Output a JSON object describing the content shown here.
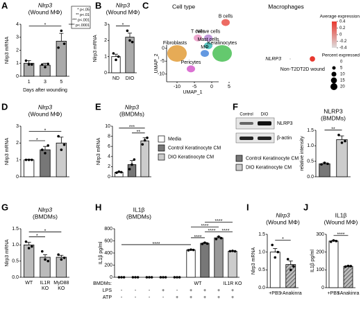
{
  "chart_data": [
    {
      "type": "bar",
      "panel": "A",
      "title": "Nlrp3",
      "italic_title": true,
      "subtitle": "(Wound MΦ)",
      "ylabel": "Nlrp3 mRNA",
      "xlabel": "Days after wounding",
      "categories": [
        "1",
        "3",
        "5"
      ],
      "values": [
        1.0,
        0.85,
        2.7
      ],
      "errors": [
        0.2,
        0.15,
        0.6
      ],
      "points": [
        [
          1.2,
          0.9,
          0.9
        ],
        [
          0.9,
          0.7,
          0.95
        ],
        [
          2.2,
          3.5,
          2.5
        ]
      ],
      "colors": [
        "#aaaaaa",
        "#aaaaaa",
        "#aaaaaa"
      ],
      "ylim": [
        0,
        4
      ],
      "yticks": [
        0,
        1,
        2,
        3,
        4
      ],
      "sig": [
        {
          "label": "*",
          "between": [
            0,
            2
          ]
        }
      ],
      "pvalue_key": [
        "* p<.05",
        "** p<.01",
        "*** p<.001",
        "**** p<.0001"
      ]
    },
    {
      "type": "bar",
      "panel": "B",
      "title": "Nlrp3",
      "italic_title": true,
      "subtitle": "(Wound MΦ)",
      "ylabel": "Nlrp3 mRNA",
      "categories": [
        "ND",
        "DIO"
      ],
      "values": [
        1.0,
        2.2
      ],
      "errors": [
        0.15,
        0.25
      ],
      "points": [
        [
          1.2,
          0.8,
          1.0
        ],
        [
          2.6,
          2.0,
          1.9
        ]
      ],
      "colors": [
        "#ffffff",
        "#aaaaaa"
      ],
      "ylim": [
        0,
        3
      ],
      "yticks": [
        0,
        1,
        2,
        3
      ],
      "sig": [
        {
          "label": "*",
          "between": [
            0,
            1
          ]
        }
      ]
    },
    {
      "type": "umap",
      "panel": "C",
      "title": "Cell type",
      "xlabel": "UMAP_1",
      "ylabel": "UMAP_2",
      "xlim": [
        -13,
        8
      ],
      "ylim": [
        -13,
        12
      ],
      "xticks": [
        -10,
        -5,
        0,
        5
      ],
      "yticks": [
        -10,
        -5,
        0,
        5,
        10
      ],
      "clusters": [
        {
          "name": "B cells",
          "color": "#e8463c",
          "x": 4,
          "y": 10
        },
        {
          "name": "T cells",
          "color": "#e98fc0",
          "x": -4,
          "y": 4
        },
        {
          "name": "Nerve cells",
          "color": "#b07fd0",
          "x": -1,
          "y": 4
        },
        {
          "name": "Mast cells",
          "color": "#2fb6b0",
          "x": -1,
          "y": 1
        },
        {
          "name": "MΦ",
          "color": "#3d7fd9",
          "x": -2,
          "y": -2
        },
        {
          "name": "Fibroblasts",
          "color": "#e0962c",
          "x": -10,
          "y": -2
        },
        {
          "name": "Keratinocytes",
          "color": "#3dbb4a",
          "x": 3,
          "y": -2
        },
        {
          "name": "Pericytes",
          "color": "#d24fc8",
          "x": -6,
          "y": -8
        }
      ]
    },
    {
      "type": "dotplot",
      "title": "Macrophages",
      "gene": "NLRP3",
      "categories": [
        "Non-T2D",
        "T2D wound"
      ],
      "avg": [
        -0.4,
        0.4
      ],
      "pct": [
        1,
        12
      ],
      "colors": [
        "#dddddd",
        "#e8382f"
      ],
      "color_legend_title": "Average expression",
      "color_ticks": [
        0.4,
        0.2,
        0,
        -0.2,
        -0.4
      ],
      "size_legend_title": "Percent expressed",
      "size_ticks": [
        0,
        5,
        10,
        15,
        20
      ]
    },
    {
      "type": "bar",
      "panel": "D",
      "title": "Nlrp3",
      "italic_title": true,
      "subtitle": "(Wound MΦ)",
      "ylabel": "Nlrp3 mRNA",
      "categories": [
        null,
        null,
        null
      ],
      "values": [
        1.0,
        1.6,
        2.0
      ],
      "errors": [
        0.03,
        0.2,
        0.35
      ],
      "points": [
        [
          1.0,
          1.0,
          1.0
        ],
        [
          1.6,
          1.4,
          1.85
        ],
        [
          2.4,
          1.6,
          1.9
        ]
      ],
      "colors": [
        "#ffffff",
        "#777777",
        "#cccccc"
      ],
      "ylim": [
        0,
        3
      ],
      "yticks": [
        0,
        1,
        2,
        3
      ],
      "sig": [
        {
          "label": "*",
          "between": [
            0,
            1
          ]
        },
        {
          "label": "*",
          "between": [
            0,
            2
          ]
        }
      ]
    },
    {
      "type": "bar",
      "panel": "E",
      "title": "Nlrp3",
      "italic_title": true,
      "subtitle": "(BMDMs)",
      "ylabel": "Nlrp3 mRNA",
      "categories": [
        null,
        null,
        null
      ],
      "values": [
        0.9,
        2.4,
        7.1
      ],
      "errors": [
        0.1,
        0.8,
        0.6
      ],
      "points": [
        [
          0.8,
          1.0,
          0.9
        ],
        [
          1.5,
          2.4,
          3.4
        ],
        [
          6.4,
          7.2,
          7.7
        ]
      ],
      "colors": [
        "#ffffff",
        "#777777",
        "#cccccc"
      ],
      "ylim": [
        0,
        10
      ],
      "yticks": [
        0,
        2,
        4,
        6,
        8,
        10
      ],
      "sig": [
        {
          "label": "**",
          "between": [
            1,
            2
          ]
        },
        {
          "label": "***",
          "between": [
            0,
            2
          ]
        }
      ],
      "legend": [
        {
          "name": "Media",
          "color": "#ffffff"
        },
        {
          "name": "Control Keratinocyte CM",
          "color": "#777777"
        },
        {
          "name": "DIO Keratinocyte CM",
          "color": "#cccccc"
        }
      ]
    },
    {
      "type": "bar",
      "panel": "F",
      "title": "NLRP3",
      "italic_title": false,
      "subtitle": "(BMDMs)",
      "ylabel": "relative intensity",
      "categories": [
        null,
        null
      ],
      "values": [
        0.42,
        1.2
      ],
      "errors": [
        0.03,
        0.12
      ],
      "points": [
        [
          0.4,
          0.45,
          0.42
        ],
        [
          1.35,
          1.1,
          1.15
        ]
      ],
      "colors": [
        "#777777",
        "#cccccc"
      ],
      "ylim": [
        0,
        1.5
      ],
      "yticks": [
        {
          "value": 0,
          "label": "0.0"
        },
        0.5,
        {
          "value": 1,
          "label": "1.0"
        },
        1.5
      ],
      "sig": [
        {
          "label": "**",
          "between": [
            0,
            1
          ]
        }
      ],
      "legend": [
        {
          "name": "Control Keratinocyte CM",
          "color": "#777777"
        },
        {
          "name": "DIO Keratinocyte CM",
          "color": "#cccccc"
        }
      ],
      "blot": {
        "lanes": [
          "Control",
          "DIO"
        ],
        "bands": [
          "NLRP3",
          "β-actin"
        ]
      }
    },
    {
      "type": "bar",
      "panel": "G",
      "title": "Nlrp3",
      "italic_title": true,
      "subtitle": "(BMDMs)",
      "ylabel": "Nlrp3 mRNA",
      "categories": [
        "WT",
        "IL1R KO",
        "MyD88 KO"
      ],
      "values": [
        1.0,
        0.62,
        0.62
      ],
      "errors": [
        0.08,
        0.08,
        0.06
      ],
      "points": [
        [
          1.1,
          0.9,
          0.95
        ],
        [
          0.8,
          0.55,
          0.5
        ],
        [
          0.7,
          0.55,
          0.6
        ]
      ],
      "colors": [
        "#bbbbbb",
        "#bbbbbb",
        "#bbbbbb"
      ],
      "ylim": [
        0,
        1.5
      ],
      "yticks": [
        {
          "value": 0,
          "label": "0.0"
        },
        0.5,
        {
          "value": 1,
          "label": "1.0"
        },
        1.5
      ],
      "sig": [
        {
          "label": "*",
          "between": [
            0,
            1
          ]
        },
        {
          "label": "*",
          "between": [
            0,
            2
          ]
        }
      ]
    },
    {
      "type": "bar",
      "panel": "H",
      "title": "IL1β",
      "italic_title": false,
      "subtitle": "(BMDMs)",
      "ylabel": "IL1β pg/ml",
      "categories": [
        null,
        null,
        null,
        null,
        null,
        null,
        null,
        null,
        null
      ],
      "values": [
        0,
        0,
        0,
        0,
        0,
        450,
        560,
        650,
        430
      ],
      "errors": [
        0,
        0,
        0,
        0,
        0,
        8,
        12,
        15,
        6
      ],
      "points": [
        [
          0,
          0,
          0
        ],
        [
          0,
          0,
          0
        ],
        [
          0,
          0,
          0
        ],
        [
          0,
          0,
          0
        ],
        [
          0,
          0,
          0
        ],
        [
          445,
          455,
          450
        ],
        [
          550,
          570,
          555
        ],
        [
          630,
          670,
          645
        ],
        [
          430,
          435,
          428
        ]
      ],
      "colors": [
        "#ffffff",
        "#ffffff",
        "#ffffff",
        "#ffffff",
        "#ffffff",
        "#ffffff",
        "#777777",
        "#999999",
        "#cccccc"
      ],
      "ylim": [
        0,
        800
      ],
      "yticks": [
        0,
        200,
        400,
        600,
        800
      ],
      "sig": [
        {
          "label": "****",
          "between": [
            5,
            6
          ]
        },
        {
          "label": "****",
          "between": [
            6,
            7
          ]
        },
        {
          "label": "****",
          "between": [
            7,
            8
          ]
        },
        {
          "label": "****",
          "between": [
            0,
            5
          ]
        },
        {
          "label": "****",
          "between": [
            5,
            7
          ]
        },
        {
          "label": "****",
          "between": [
            6,
            8
          ]
        }
      ],
      "row_title": "BMDMs:",
      "groups": [
        {
          "label": "WT",
          "between": [
            0,
            7
          ]
        },
        {
          "label": "IL1R KO",
          "between": [
            8,
            8
          ]
        }
      ],
      "rows": [
        {
          "label": "LPS",
          "marks": [
            "-",
            "-",
            "-",
            "+",
            "-",
            "+",
            "+",
            "+",
            "+"
          ]
        },
        {
          "label": "ATP",
          "marks": [
            "-",
            "-",
            "-",
            "-",
            "+",
            "+",
            "+",
            "+",
            "+"
          ]
        }
      ]
    },
    {
      "type": "bar",
      "panel": "I",
      "title": "Nlrp3",
      "italic_title": true,
      "subtitle": "(Wound MΦ)",
      "ylabel": "Nlrp3 mRNA",
      "categories": [
        "+PBS",
        "+Anakinra"
      ],
      "values": [
        1.0,
        0.65
      ],
      "errors": [
        0.1,
        0.1
      ],
      "points": [
        [
          1.2,
          0.85,
          1.0
        ],
        [
          0.8,
          0.5,
          0.6
        ]
      ],
      "colors": [
        "#ffffff",
        "#999999"
      ],
      "hatch": [
        false,
        true
      ],
      "ylim": [
        0,
        1.5
      ],
      "yticks": [
        {
          "value": 0,
          "label": "0.0"
        },
        0.5,
        {
          "value": 1,
          "label": "1.0"
        },
        1.5
      ],
      "sig": [
        {
          "label": "*",
          "between": [
            0,
            1
          ]
        }
      ]
    },
    {
      "type": "bar",
      "panel": "J",
      "title": "IL1β",
      "italic_title": false,
      "subtitle": "(Wound MΦ)",
      "ylabel": "IL1β pg/ml",
      "categories": [
        "+PBS",
        "+Anakinra"
      ],
      "values": [
        262,
        120
      ],
      "errors": [
        4,
        3
      ],
      "points": [
        [
          258,
          265,
          262
        ],
        [
          118,
          122,
          121
        ]
      ],
      "colors": [
        "#ffffff",
        "#999999"
      ],
      "hatch": [
        false,
        true
      ],
      "ylim": [
        0,
        300
      ],
      "yticks": [
        0,
        100,
        200,
        300
      ],
      "sig": [
        {
          "label": "****",
          "between": [
            0,
            1
          ]
        }
      ]
    }
  ]
}
